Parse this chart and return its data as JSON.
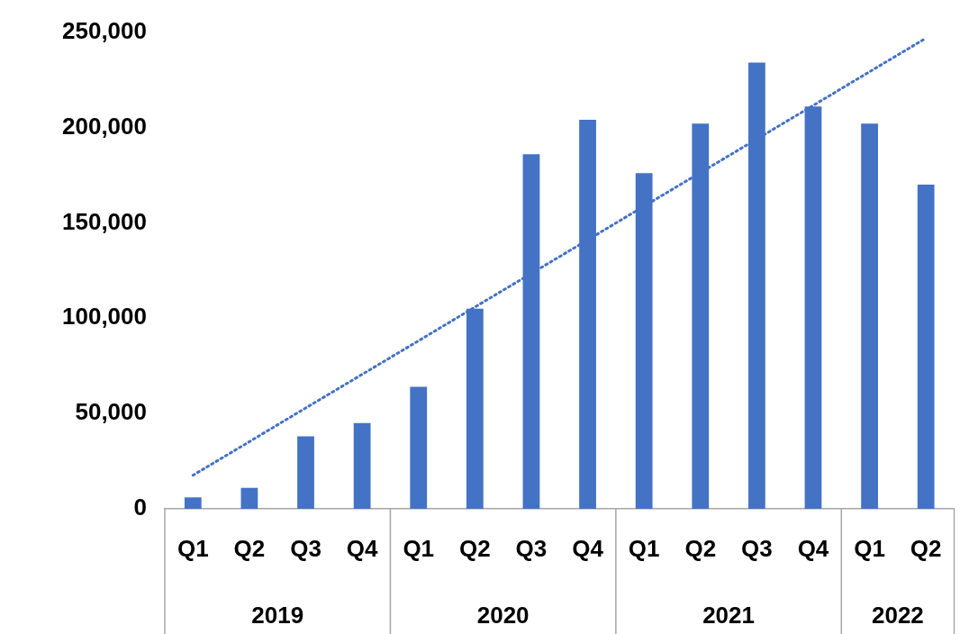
{
  "chart_data": {
    "type": "bar",
    "categories": [
      "Q1",
      "Q2",
      "Q3",
      "Q4",
      "Q1",
      "Q2",
      "Q3",
      "Q4",
      "Q1",
      "Q2",
      "Q3",
      "Q4",
      "Q1",
      "Q2"
    ],
    "series": [
      {
        "color": "#4472c4",
        "values": [
          6000,
          11000,
          38000,
          45000,
          64000,
          105000,
          186000,
          204000,
          176000,
          202000,
          234000,
          211000,
          202000,
          170000
        ]
      },
      {
        "type": "line",
        "color": "#4472c4",
        "line_style": "dotted",
        "marker": "none",
        "values": [
          17600,
          35200,
          52900,
          70500,
          88100,
          105800,
          123400,
          141000,
          158700,
          176300,
          193900,
          211500,
          229200,
          246800
        ]
      }
    ],
    "ylim": [
      0,
      250000
    ],
    "yticks": [
      {
        "value": 0,
        "label": "0"
      },
      {
        "value": 50000,
        "label": "50,000"
      },
      {
        "value": 100000,
        "label": "100,000"
      },
      {
        "value": 150000,
        "label": "150,000"
      },
      {
        "value": 200000,
        "label": "200,000"
      },
      {
        "value": 250000,
        "label": "250,000"
      }
    ],
    "grid": false,
    "legend": false,
    "annotations": [
      "2019",
      "2020",
      "2021",
      "2022"
    ]
  }
}
